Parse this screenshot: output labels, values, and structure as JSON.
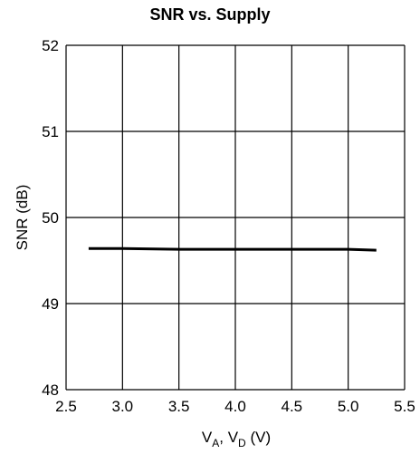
{
  "chart_data": {
    "type": "line",
    "title": "SNR vs. Supply",
    "xlabel": {
      "main": "V",
      "sub1": "A",
      "sep": ", V",
      "sub2": "D",
      "unit": " (V)"
    },
    "ylabel": "SNR (dB)",
    "xlim": [
      2.5,
      5.5
    ],
    "ylim": [
      48,
      52
    ],
    "xticks": [
      "2.5",
      "3.0",
      "3.5",
      "4.0",
      "4.5",
      "5.0",
      "5.5"
    ],
    "yticks": [
      "48",
      "49",
      "50",
      "51",
      "52"
    ],
    "grid": true,
    "series": [
      {
        "color": "#000000",
        "x": [
          2.7,
          3.0,
          3.5,
          4.0,
          4.5,
          5.0,
          5.25
        ],
        "y": [
          49.64,
          49.64,
          49.63,
          49.63,
          49.63,
          49.63,
          49.62
        ]
      }
    ]
  }
}
